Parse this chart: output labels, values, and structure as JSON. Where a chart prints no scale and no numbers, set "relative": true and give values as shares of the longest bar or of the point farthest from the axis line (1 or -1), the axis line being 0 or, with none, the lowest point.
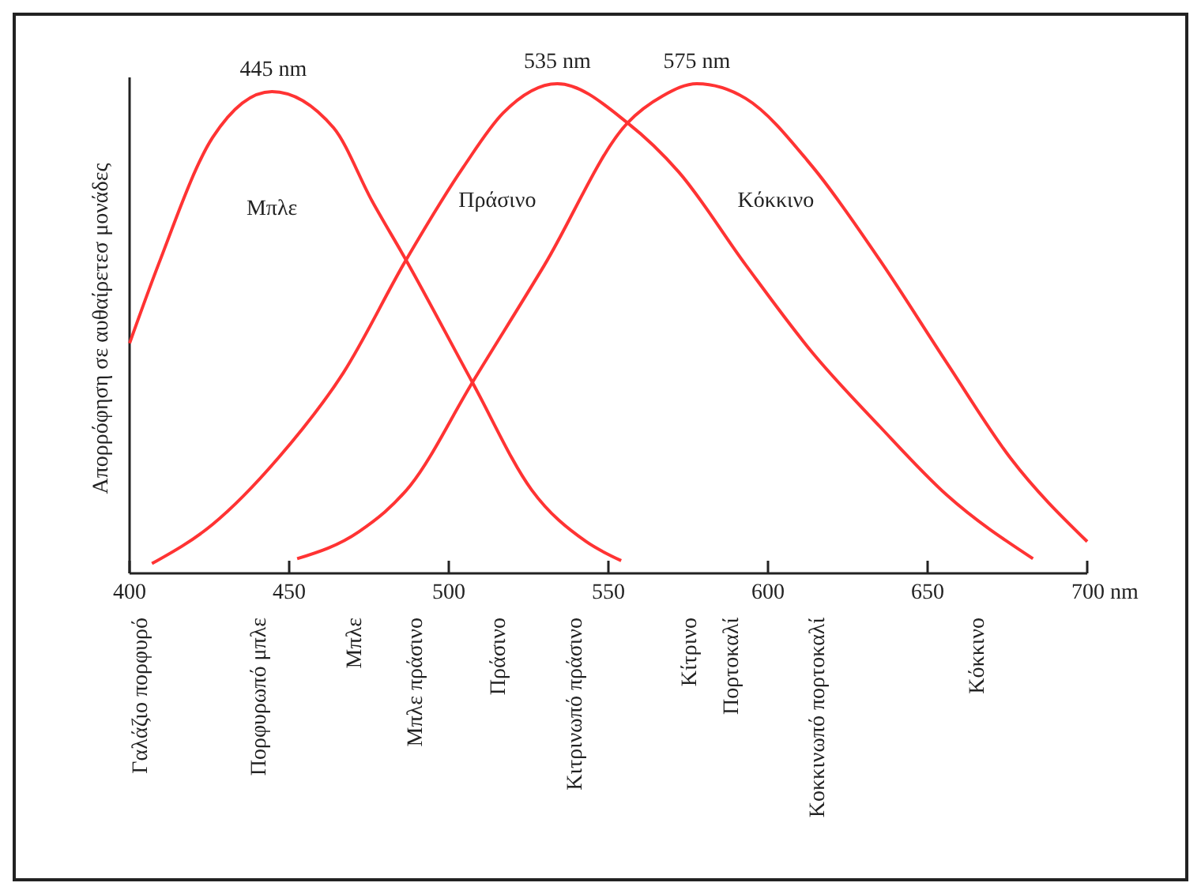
{
  "chart_data": {
    "type": "line",
    "relative": true,
    "ylabel": "Απορρόφηση σε αυθαίρετεσ μονάδες",
    "xlim": [
      400,
      700
    ],
    "xticks": [
      400,
      450,
      500,
      550,
      600,
      650,
      {
        "value": 700,
        "label": "700 nm"
      }
    ],
    "grid": false,
    "legend": false,
    "marker": "none",
    "line_style": "solid",
    "series": [
      {
        "name": "Μπλε",
        "color": "#ff3333",
        "x": [
          400,
          409,
          426,
          444.6,
          463.9,
          476,
          486.6,
          507.4,
          526,
          543,
          554
        ],
        "values": [
          0.47,
          0.63,
          0.89,
          0.984,
          0.91,
          0.76,
          0.64,
          0.39,
          0.17,
          0.065,
          0.026
        ]
      },
      {
        "name": "Πράσινο",
        "color": "#ff3333",
        "x": [
          407,
          426,
          446.5,
          467,
          486.6,
          504.6,
          517,
          534,
          556,
          572,
          593,
          614,
          635,
          656,
          683
        ],
        "values": [
          0.02,
          0.1,
          0.235,
          0.41,
          0.64,
          0.83,
          0.94,
          1,
          0.92,
          0.82,
          0.63,
          0.45,
          0.3,
          0.16,
          0.03
        ]
      },
      {
        "name": "Κόκκινο",
        "color": "#ff3333",
        "x": [
          452.5,
          471.8,
          488,
          507.4,
          530,
          556,
          567,
          577.7,
          593,
          614,
          635,
          656,
          676,
          700
        ],
        "values": [
          0.03,
          0.085,
          0.18,
          0.39,
          0.63,
          0.92,
          0.975,
          1,
          0.97,
          0.83,
          0.64,
          0.43,
          0.235,
          0.065
        ]
      }
    ],
    "annotations": [
      {
        "text": "445 nm",
        "x": 445,
        "y": 0.984
      },
      {
        "text": "535 nm",
        "x": 534,
        "y": 1
      },
      {
        "text": "575 nm",
        "x": 577.7,
        "y": 1
      },
      "Γαλάζιο πορφυρό",
      "Πορφυρωπό μπλε",
      "Μπλε",
      "Μπλε πράσινο",
      "Πράσινο",
      "Κιτρινωπό πράσινο",
      "Κίτρινο",
      "Πορτοκαλί",
      "Κοκκινωπό πορτοκαλί",
      "Κόκκινο"
    ]
  }
}
